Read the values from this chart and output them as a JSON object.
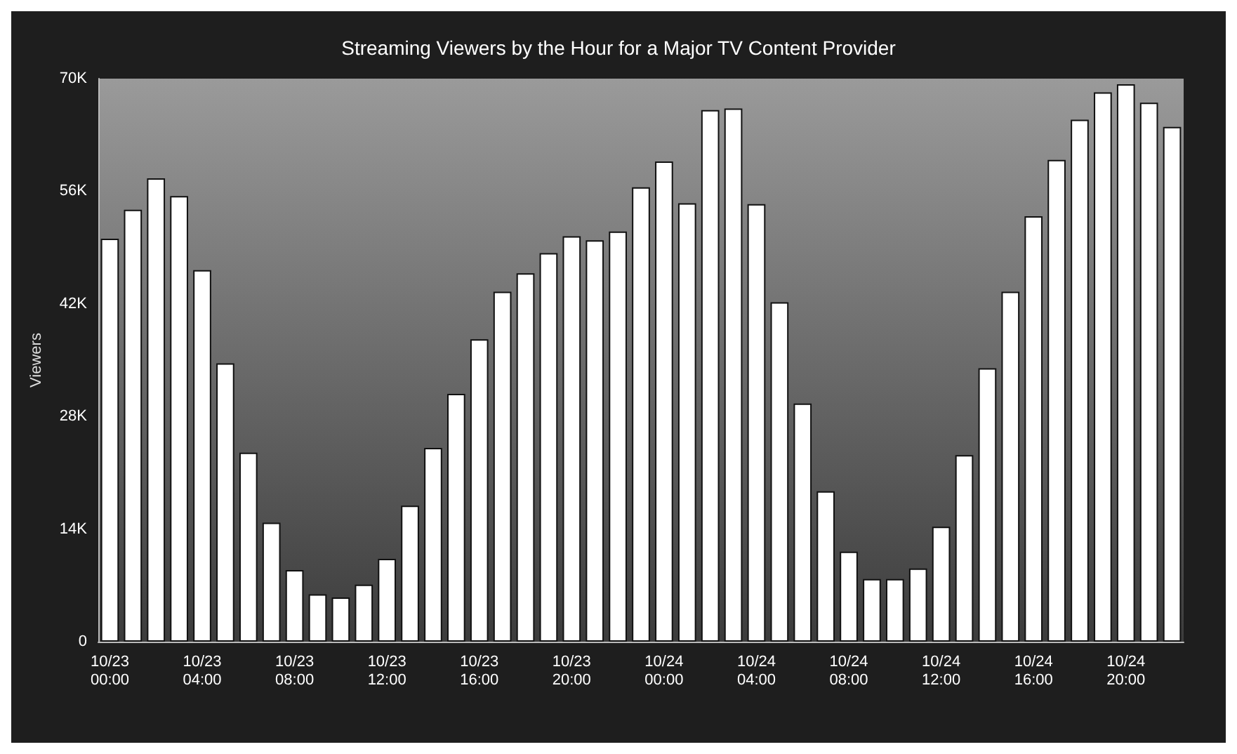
{
  "chart_data": {
    "type": "bar",
    "title": "Streaming Viewers by the Hour for a Major TV Content Provider",
    "ylabel": "Viewers",
    "categories": [
      "10/23\n00:00",
      null,
      null,
      null,
      "10/23\n04:00",
      null,
      null,
      null,
      "10/23\n08:00",
      null,
      null,
      null,
      "10/23\n12:00",
      null,
      null,
      null,
      "10/23\n16:00",
      null,
      null,
      null,
      "10/23\n20:00",
      null,
      null,
      null,
      "10/24\n00:00",
      null,
      null,
      null,
      "10/24\n04:00",
      null,
      null,
      null,
      "10/24\n08:00",
      null,
      null,
      null,
      "10/24\n12:00",
      null,
      null,
      null,
      "10/24\n16:00",
      null,
      null,
      null,
      "10/24\n20:00",
      null,
      null
    ],
    "values": [
      50100,
      53700,
      57600,
      55400,
      46200,
      34600,
      23500,
      14800,
      8900,
      5900,
      5500,
      7100,
      10300,
      16900,
      24100,
      30800,
      37600,
      43500,
      45800,
      48300,
      50400,
      49900,
      51000,
      56500,
      59700,
      54500,
      66100,
      66300,
      54400,
      42200,
      29600,
      18700,
      11200,
      7800,
      7800,
      9100,
      14300,
      23200,
      34000,
      43500,
      52900,
      59900,
      64900,
      68300,
      69300,
      67000,
      64000
    ],
    "color": "#ffffff",
    "ylim": [
      0,
      70000
    ],
    "yticks": [
      {
        "value": 0,
        "label": "0"
      },
      {
        "value": 14000,
        "label": "14K"
      },
      {
        "value": 28000,
        "label": "28K"
      },
      {
        "value": 42000,
        "label": "42K"
      },
      {
        "value": 56000,
        "label": "56K"
      },
      {
        "value": 70000,
        "label": "70K"
      }
    ],
    "grid": false
  }
}
